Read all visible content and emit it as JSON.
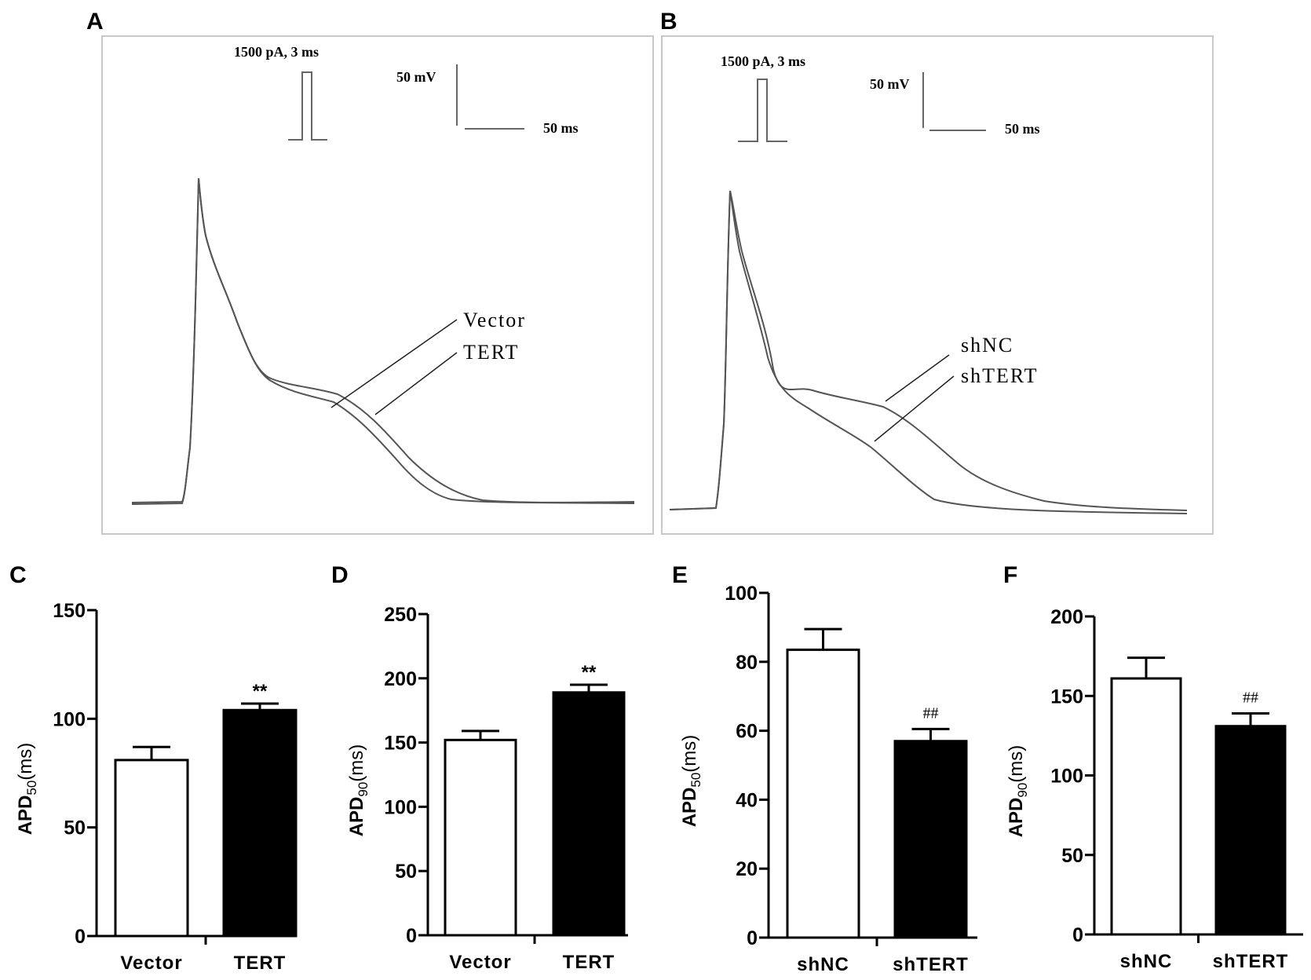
{
  "figure": {
    "panels": {
      "A": {
        "letter": "A",
        "stimulus_label": "1500 pA, 3 ms",
        "scale_voltage": "50 mV",
        "scale_time": "50 ms",
        "trace_labels": [
          "Vector",
          "TERT"
        ]
      },
      "B": {
        "letter": "B",
        "stimulus_label": "1500 pA, 3 ms",
        "scale_voltage": "50 mV",
        "scale_time": "50 ms",
        "trace_labels": [
          "shNC",
          "shTERT"
        ]
      }
    },
    "colors": {
      "trace": "#555555",
      "frame": "#c8c8c8",
      "bar_control": "#ffffff",
      "bar_treated": "#000000",
      "axis": "#000000"
    }
  },
  "chart_data": [
    {
      "panel": "C",
      "type": "bar",
      "title": "",
      "xlabel": "",
      "ylabel": "APD50(ms)",
      "ylabel_main": "APD",
      "ylabel_sub": "50",
      "ylabel_unit": "(ms)",
      "categories": [
        "Vector",
        "TERT"
      ],
      "values": [
        81,
        104
      ],
      "error_upper": [
        87,
        107
      ],
      "significance": [
        "",
        "**"
      ],
      "ylim": [
        0,
        150
      ],
      "yticks": [
        0,
        50,
        100,
        150
      ],
      "grid": false
    },
    {
      "panel": "D",
      "type": "bar",
      "title": "",
      "xlabel": "",
      "ylabel": "APD90(ms)",
      "ylabel_main": "APD",
      "ylabel_sub": "90",
      "ylabel_unit": "(ms)",
      "categories": [
        "Vector",
        "TERT"
      ],
      "values": [
        152,
        189
      ],
      "error_upper": [
        159,
        195
      ],
      "significance": [
        "",
        "**"
      ],
      "ylim": [
        0,
        250
      ],
      "yticks": [
        0,
        50,
        100,
        150,
        200,
        250
      ],
      "grid": false
    },
    {
      "panel": "E",
      "type": "bar",
      "title": "",
      "xlabel": "",
      "ylabel": "APD50(ms)",
      "ylabel_main": "APD",
      "ylabel_sub": "50",
      "ylabel_unit": "(ms)",
      "categories": [
        "shNC",
        "shTERT"
      ],
      "values": [
        83.5,
        57
      ],
      "error_upper": [
        89.5,
        60.5
      ],
      "significance": [
        "",
        "##"
      ],
      "ylim": [
        0,
        100
      ],
      "yticks": [
        0,
        20,
        40,
        60,
        80,
        100
      ],
      "grid": false
    },
    {
      "panel": "F",
      "type": "bar",
      "title": "",
      "xlabel": "",
      "ylabel": "APD90(ms)",
      "ylabel_main": "APD",
      "ylabel_sub": "90",
      "ylabel_unit": "(ms)",
      "categories": [
        "shNC",
        "shTERT"
      ],
      "values": [
        161,
        131
      ],
      "error_upper": [
        174,
        139
      ],
      "significance": [
        "",
        "##"
      ],
      "ylim": [
        0,
        200
      ],
      "yticks": [
        0,
        50,
        100,
        150,
        200
      ],
      "grid": false
    }
  ]
}
